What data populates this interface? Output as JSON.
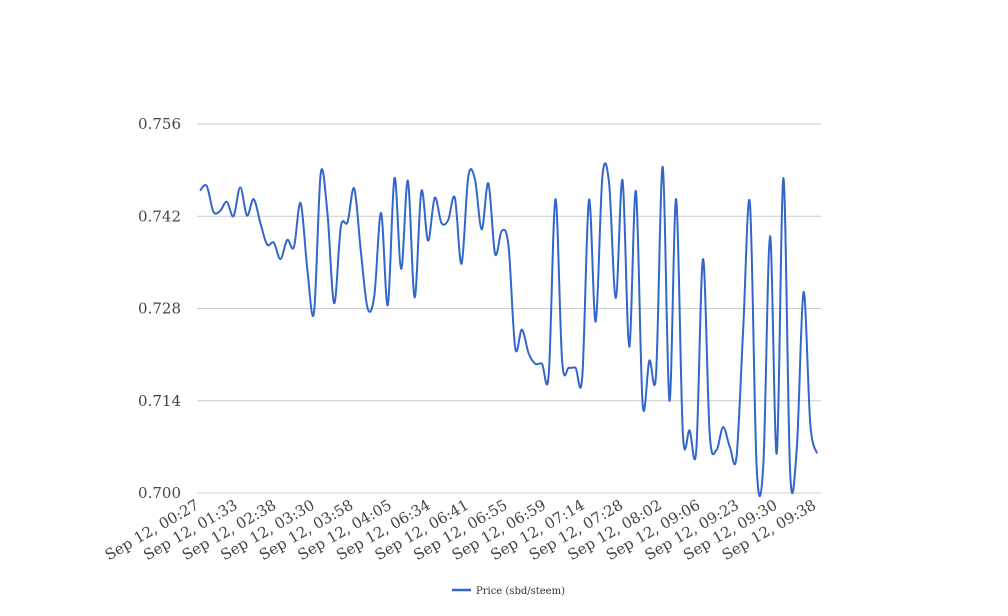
{
  "chart_data": {
    "type": "line",
    "title": "",
    "xlabel": "",
    "ylabel": "",
    "ylim": [
      0.7,
      0.756
    ],
    "yticks": [
      "0.700",
      "0.714",
      "0.728",
      "0.742",
      "0.756"
    ],
    "xticks": [
      "Sep 12, 00:27",
      "Sep 12, 01:33",
      "Sep 12, 02:38",
      "Sep 12, 03:30",
      "Sep 12, 03:58",
      "Sep 12, 04:05",
      "Sep 12, 06:34",
      "Sep 12, 06:41",
      "Sep 12, 06:55",
      "Sep 12, 06:59",
      "Sep 12, 07:14",
      "Sep 12, 07:28",
      "Sep 12, 08:02",
      "Sep 12, 09:06",
      "Sep 12, 09:23",
      "Sep 12, 09:30",
      "Sep 12, 09:38"
    ],
    "grid": true,
    "legend_position": "bottom",
    "series": [
      {
        "name": "Price (sbd/steem)",
        "color": "#3366cc",
        "values": [
          0.7459,
          0.7466,
          0.7427,
          0.7428,
          0.7442,
          0.742,
          0.7464,
          0.7421,
          0.7446,
          0.741,
          0.7377,
          0.738,
          0.7355,
          0.7384,
          0.7373,
          0.744,
          0.734,
          0.7274,
          0.7485,
          0.7425,
          0.7288,
          0.7404,
          0.7411,
          0.7462,
          0.7365,
          0.728,
          0.73,
          0.7425,
          0.7285,
          0.7478,
          0.734,
          0.7474,
          0.7297,
          0.7458,
          0.7383,
          0.7448,
          0.741,
          0.7414,
          0.7448,
          0.7348,
          0.748,
          0.7476,
          0.74,
          0.747,
          0.7363,
          0.7398,
          0.7375,
          0.722,
          0.7248,
          0.7212,
          0.7196,
          0.7196,
          0.718,
          0.7446,
          0.72,
          0.719,
          0.719,
          0.7176,
          0.7445,
          0.726,
          0.748,
          0.747,
          0.7296,
          0.7475,
          0.7222,
          0.7458,
          0.7135,
          0.7201,
          0.718,
          0.7495,
          0.714,
          0.7446,
          0.709,
          0.7095,
          0.7065,
          0.7355,
          0.709,
          0.7065,
          0.71,
          0.707,
          0.7055,
          0.725,
          0.744,
          0.704,
          0.7044,
          0.739,
          0.706,
          0.7478,
          0.703,
          0.707,
          0.7305,
          0.7105,
          0.706
        ]
      }
    ]
  }
}
